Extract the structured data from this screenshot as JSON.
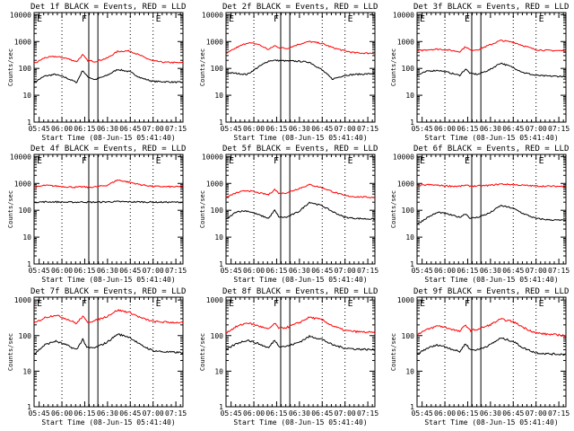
{
  "figure": {
    "series_colors": {
      "events": "#000000",
      "lld": "#ff0000"
    },
    "common": {
      "xlabel": "Start Time (08-Jun-15 05:41:40)",
      "ylabel": "Counts/sec",
      "x_tick_labels": [
        "05:45",
        "06:00",
        "06:15",
        "06:30",
        "06:45",
        "07:00",
        "07:15"
      ],
      "y_tick_labels": [
        "1",
        "10",
        "100",
        "1000",
        "10000"
      ],
      "marker_labels": [
        "E",
        "F",
        "E"
      ]
    }
  },
  "chart_data": [
    {
      "type": "line",
      "title": "Det 1f BLACK = Events, RED = LLD",
      "xlabel": "Start Time (08-Jun-15 05:41:40)",
      "ylabel": "Counts/sec",
      "x_unit": "minutes after 05:41:40",
      "xlim": [
        0,
        98
      ],
      "ylim": [
        1,
        12000
      ],
      "yscale": "log",
      "x": [
        0,
        7,
        14,
        21,
        28,
        32,
        35,
        40,
        48,
        55,
        63,
        70,
        78,
        85,
        92,
        98
      ],
      "vertical_markers": [
        {
          "x": 36,
          "label": "F"
        },
        {
          "x": 42,
          "label": ""
        }
      ],
      "dotted_lines_x": [
        18.33,
        63.33,
        78.33
      ],
      "series": [
        {
          "name": "Events",
          "color": "#000000",
          "values": [
            30,
            52,
            60,
            45,
            30,
            85,
            50,
            38,
            55,
            92,
            75,
            45,
            33,
            32,
            31,
            30
          ]
        },
        {
          "name": "LLD",
          "color": "#ff0000",
          "values": [
            150,
            250,
            280,
            240,
            180,
            320,
            200,
            180,
            240,
            430,
            450,
            300,
            190,
            170,
            165,
            160
          ]
        }
      ]
    },
    {
      "type": "line",
      "title": "Det 2f BLACK = Events, RED = LLD",
      "xlabel": "Start Time (08-Jun-15 05:41:40)",
      "ylabel": "Counts/sec",
      "x_unit": "minutes after 05:41:40",
      "xlim": [
        0,
        98
      ],
      "ylim": [
        1,
        12000
      ],
      "yscale": "log",
      "x": [
        0,
        7,
        14,
        21,
        28,
        32,
        35,
        40,
        48,
        55,
        63,
        70,
        78,
        85,
        92,
        98
      ],
      "vertical_markers": [
        {
          "x": 36,
          "label": "F"
        },
        {
          "x": 42,
          "label": ""
        }
      ],
      "dotted_lines_x": [
        18.33,
        63.33,
        78.33
      ],
      "series": [
        {
          "name": "Events",
          "color": "#000000",
          "values": [
            70,
            65,
            60,
            110,
            190,
            200,
            195,
            190,
            185,
            170,
            90,
            40,
            55,
            60,
            62,
            65
          ]
        },
        {
          "name": "LLD",
          "color": "#ff0000",
          "values": [
            350,
            600,
            900,
            800,
            500,
            700,
            600,
            550,
            800,
            1000,
            850,
            600,
            450,
            380,
            370,
            370
          ]
        }
      ]
    },
    {
      "type": "line",
      "title": "Det 3f BLACK = Events, RED = LLD",
      "xlabel": "Start Time (08-Jun-15 05:41:40)",
      "ylabel": "Counts/sec",
      "x_unit": "minutes after 05:41:40",
      "xlim": [
        0,
        98
      ],
      "ylim": [
        1,
        12000
      ],
      "yscale": "log",
      "x": [
        0,
        7,
        14,
        21,
        28,
        32,
        35,
        40,
        48,
        55,
        63,
        70,
        78,
        85,
        92,
        98
      ],
      "vertical_markers": [
        {
          "x": 36,
          "label": "E"
        },
        {
          "x": 42,
          "label": ""
        }
      ],
      "dotted_lines_x": [
        18.33,
        63.33,
        78.33
      ],
      "series": [
        {
          "name": "Events",
          "color": "#000000",
          "values": [
            55,
            80,
            85,
            70,
            55,
            95,
            65,
            60,
            90,
            160,
            110,
            70,
            55,
            52,
            51,
            50
          ]
        },
        {
          "name": "LLD",
          "color": "#ff0000",
          "values": [
            450,
            500,
            520,
            480,
            420,
            650,
            480,
            500,
            750,
            1100,
            950,
            700,
            500,
            470,
            460,
            460
          ]
        }
      ]
    },
    {
      "type": "line",
      "title": "Det 4f BLACK = Events, RED = LLD",
      "xlabel": "Start Time (08-Jun-15 05:41:40)",
      "ylabel": "Counts/sec",
      "x_unit": "minutes after 05:41:40",
      "xlim": [
        0,
        98
      ],
      "ylim": [
        1,
        12000
      ],
      "yscale": "log",
      "x": [
        0,
        7,
        14,
        21,
        28,
        32,
        35,
        40,
        48,
        55,
        63,
        70,
        78,
        85,
        92,
        98
      ],
      "vertical_markers": [
        {
          "x": 36,
          "label": "F"
        },
        {
          "x": 42,
          "label": ""
        }
      ],
      "dotted_lines_x": [
        18.33,
        63.33,
        78.33
      ],
      "series": [
        {
          "name": "Events",
          "color": "#000000",
          "values": [
            200,
            205,
            205,
            200,
            200,
            205,
            200,
            200,
            205,
            210,
            205,
            205,
            200,
            200,
            200,
            200
          ]
        },
        {
          "name": "LLD",
          "color": "#ff0000",
          "values": [
            700,
            850,
            800,
            750,
            720,
            750,
            720,
            740,
            850,
            1350,
            1100,
            900,
            780,
            760,
            750,
            750
          ]
        }
      ]
    },
    {
      "type": "line",
      "title": "Det 5f BLACK = Events, RED = LLD",
      "xlabel": "Start Time (08-Jun-15 05:41:40)",
      "ylabel": "Counts/sec",
      "x_unit": "minutes after 05:41:40",
      "xlim": [
        0,
        98
      ],
      "ylim": [
        1,
        12000
      ],
      "yscale": "log",
      "x": [
        0,
        7,
        14,
        21,
        28,
        32,
        35,
        40,
        48,
        55,
        63,
        70,
        78,
        85,
        92,
        98
      ],
      "vertical_markers": [
        {
          "x": 36,
          "label": "F"
        },
        {
          "x": 42,
          "label": ""
        }
      ],
      "dotted_lines_x": [
        18.33,
        63.33,
        78.33
      ],
      "series": [
        {
          "name": "Events",
          "color": "#000000",
          "values": [
            45,
            90,
            95,
            70,
            50,
            100,
            55,
            55,
            90,
            200,
            150,
            90,
            55,
            50,
            48,
            47
          ]
        },
        {
          "name": "LLD",
          "color": "#ff0000",
          "values": [
            300,
            450,
            550,
            450,
            380,
            600,
            420,
            450,
            650,
            900,
            700,
            500,
            350,
            320,
            310,
            300
          ]
        }
      ]
    },
    {
      "type": "line",
      "title": "Det 6f BLACK = Events, RED = LLD",
      "xlabel": "Start Time (08-Jun-15 05:41:40)",
      "ylabel": "Counts/sec",
      "x_unit": "minutes after 05:41:40",
      "xlim": [
        0,
        98
      ],
      "ylim": [
        1,
        12000
      ],
      "yscale": "log",
      "x": [
        0,
        7,
        14,
        21,
        28,
        32,
        35,
        40,
        48,
        55,
        63,
        70,
        78,
        85,
        92,
        98
      ],
      "vertical_markers": [
        {
          "x": 36,
          "label": "E"
        },
        {
          "x": 42,
          "label": ""
        }
      ],
      "dotted_lines_x": [
        18.33,
        63.33,
        78.33
      ],
      "series": [
        {
          "name": "Events",
          "color": "#000000",
          "values": [
            30,
            55,
            85,
            70,
            55,
            75,
            50,
            55,
            80,
            150,
            120,
            75,
            50,
            45,
            43,
            42
          ]
        },
        {
          "name": "LLD",
          "color": "#ff0000",
          "values": [
            800,
            900,
            850,
            800,
            780,
            850,
            800,
            800,
            850,
            950,
            900,
            850,
            800,
            790,
            780,
            780
          ]
        }
      ]
    },
    {
      "type": "line",
      "title": "Det 7f BLACK = Events, RED = LLD",
      "xlabel": "Start Time (08-Jun-15 05:41:40)",
      "ylabel": "Counts/sec",
      "x_unit": "minutes after 05:41:40",
      "xlim": [
        0,
        98
      ],
      "ylim": [
        1,
        1200
      ],
      "yscale": "log",
      "x": [
        0,
        7,
        14,
        21,
        28,
        32,
        35,
        40,
        48,
        55,
        63,
        70,
        78,
        85,
        92,
        98
      ],
      "vertical_markers": [
        {
          "x": 36,
          "label": "F"
        },
        {
          "x": 42,
          "label": ""
        }
      ],
      "dotted_lines_x": [
        18.33,
        63.33,
        78.33
      ],
      "series": [
        {
          "name": "Events",
          "color": "#000000",
          "values": [
            30,
            55,
            70,
            55,
            40,
            80,
            45,
            45,
            65,
            110,
            90,
            55,
            38,
            35,
            34,
            33
          ]
        },
        {
          "name": "LLD",
          "color": "#ff0000",
          "values": [
            220,
            320,
            380,
            300,
            220,
            350,
            240,
            260,
            350,
            520,
            450,
            320,
            250,
            240,
            235,
            230
          ]
        }
      ]
    },
    {
      "type": "line",
      "title": "Det 8f BLACK = Events, RED = LLD",
      "xlabel": "Start Time (08-Jun-15 05:41:40)",
      "ylabel": "Counts/sec",
      "x_unit": "minutes after 05:41:40",
      "xlim": [
        0,
        98
      ],
      "ylim": [
        1,
        1200
      ],
      "yscale": "log",
      "x": [
        0,
        7,
        14,
        21,
        28,
        32,
        35,
        40,
        48,
        55,
        63,
        70,
        78,
        85,
        92,
        98
      ],
      "vertical_markers": [
        {
          "x": 36,
          "label": "F"
        },
        {
          "x": 42,
          "label": ""
        }
      ],
      "dotted_lines_x": [
        18.33,
        63.33,
        78.33
      ],
      "series": [
        {
          "name": "Events",
          "color": "#000000",
          "values": [
            40,
            60,
            75,
            60,
            45,
            75,
            50,
            50,
            65,
            95,
            80,
            55,
            45,
            42,
            41,
            40
          ]
        },
        {
          "name": "LLD",
          "color": "#ff0000",
          "values": [
            120,
            180,
            230,
            190,
            150,
            220,
            160,
            170,
            230,
            330,
            280,
            190,
            140,
            130,
            125,
            120
          ]
        }
      ]
    },
    {
      "type": "line",
      "title": "Det 9f BLACK = Events, RED = LLD",
      "xlabel": "Start Time (08-Jun-15 05:41:40)",
      "ylabel": "Counts/sec",
      "x_unit": "minutes after 05:41:40",
      "xlim": [
        0,
        98
      ],
      "ylim": [
        1,
        1200
      ],
      "yscale": "log",
      "x": [
        0,
        7,
        14,
        21,
        28,
        32,
        35,
        40,
        48,
        55,
        63,
        70,
        78,
        85,
        92,
        98
      ],
      "vertical_markers": [
        {
          "x": 36,
          "label": "F"
        },
        {
          "x": 42,
          "label": ""
        }
      ],
      "dotted_lines_x": [
        18.33,
        63.33,
        78.33
      ],
      "series": [
        {
          "name": "Events",
          "color": "#000000",
          "values": [
            30,
            45,
            55,
            45,
            35,
            60,
            40,
            40,
            55,
            85,
            70,
            45,
            33,
            31,
            30,
            30
          ]
        },
        {
          "name": "LLD",
          "color": "#ff0000",
          "values": [
            110,
            150,
            190,
            160,
            130,
            200,
            140,
            150,
            200,
            290,
            250,
            170,
            120,
            110,
            105,
            100
          ]
        }
      ]
    }
  ]
}
